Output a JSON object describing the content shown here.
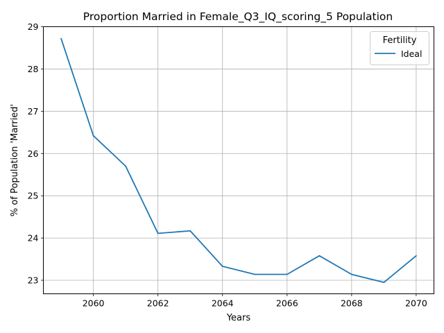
{
  "chart_data": {
    "type": "line",
    "title": "Proportion Married in Female_Q3_IQ_scoring_5 Population",
    "xlabel": "Years",
    "ylabel": "% of Population 'Married'",
    "x": [
      2059,
      2060,
      2061,
      2062,
      2063,
      2064,
      2065,
      2066,
      2067,
      2068,
      2069,
      2070
    ],
    "series": [
      {
        "name": "Ideal",
        "color": "#1f77b4",
        "values": [
          28.72,
          26.42,
          25.7,
          24.11,
          24.17,
          23.33,
          23.14,
          23.14,
          23.58,
          23.14,
          22.95,
          23.58
        ]
      }
    ],
    "xlim": [
      2058.45,
      2070.55
    ],
    "ylim": [
      22.68,
      29.0
    ],
    "xticks": [
      2060,
      2062,
      2064,
      2066,
      2068,
      2070
    ],
    "yticks": [
      23,
      24,
      25,
      26,
      27,
      28,
      29
    ],
    "grid": true,
    "legend": {
      "title": "Fertility",
      "position": "top-right"
    }
  }
}
